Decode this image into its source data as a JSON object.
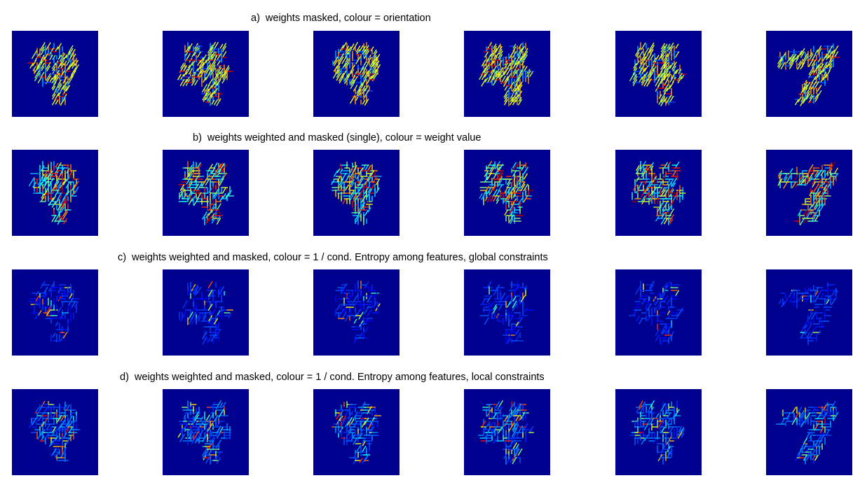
{
  "colors": {
    "background": "#00008f",
    "colormap": "jet"
  },
  "rows": [
    {
      "letter": "a)",
      "title": "weights masked, colour = orientation",
      "mode": "orientation",
      "panels": [
        {
          "digit": "9",
          "seed": 11
        },
        {
          "digit": "4",
          "seed": 12
        },
        {
          "digit": "9",
          "seed": 13
        },
        {
          "digit": "4",
          "seed": 14
        },
        {
          "digit": "4",
          "seed": 15
        },
        {
          "digit": "7",
          "seed": 16
        }
      ]
    },
    {
      "letter": "b)",
      "title": "weights weighted and masked (single), colour = weight value",
      "mode": "weight",
      "panels": [
        {
          "digit": "9",
          "seed": 21
        },
        {
          "digit": "4",
          "seed": 22
        },
        {
          "digit": "9",
          "seed": 23
        },
        {
          "digit": "4",
          "seed": 24
        },
        {
          "digit": "4",
          "seed": 25
        },
        {
          "digit": "7",
          "seed": 26
        }
      ]
    },
    {
      "letter": "c)",
      "title": "weights weighted and masked, colour = 1 / cond. Entropy among features, global constraints",
      "mode": "global",
      "panels": [
        {
          "digit": "9",
          "seed": 31
        },
        {
          "digit": "4",
          "seed": 32
        },
        {
          "digit": "9",
          "seed": 33
        },
        {
          "digit": "4",
          "seed": 34
        },
        {
          "digit": "4",
          "seed": 35
        },
        {
          "digit": "7",
          "seed": 36
        }
      ]
    },
    {
      "letter": "d)",
      "title": "weights weighted and masked, colour = 1 / cond. Entropy among features, local constraints",
      "mode": "local",
      "panels": [
        {
          "digit": "9",
          "seed": 41
        },
        {
          "digit": "4",
          "seed": 42
        },
        {
          "digit": "9",
          "seed": 43
        },
        {
          "digit": "4",
          "seed": 44
        },
        {
          "digit": "4",
          "seed": 45
        },
        {
          "digit": "7",
          "seed": 46
        }
      ]
    }
  ]
}
